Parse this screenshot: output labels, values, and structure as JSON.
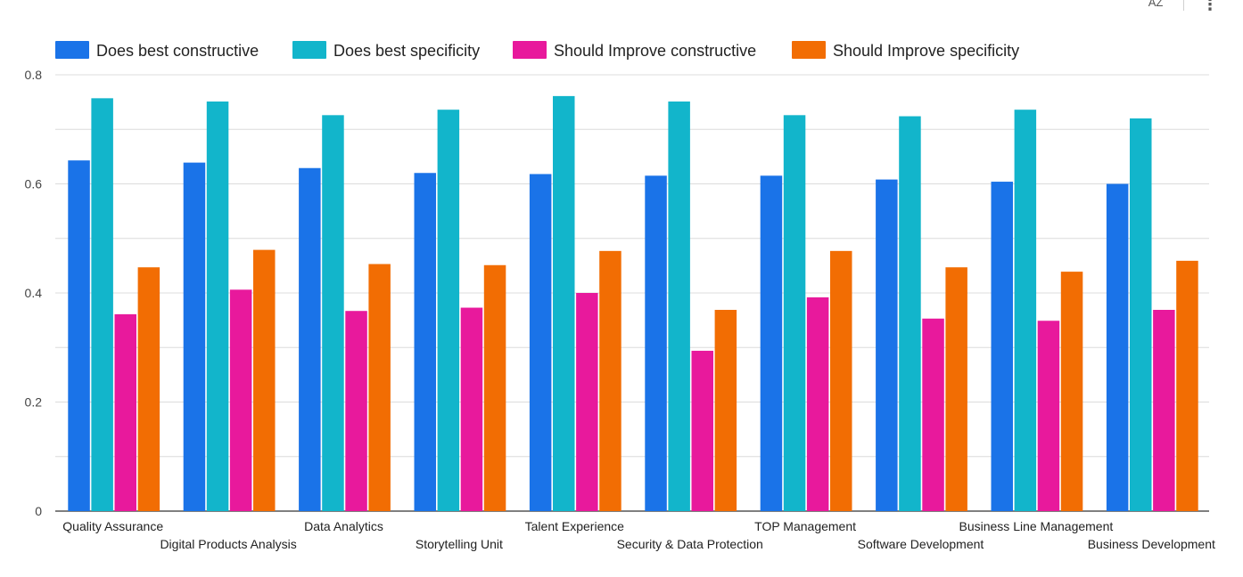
{
  "toolbar": {
    "sort_icon_text": "AZ",
    "more_icon": "more-vert-icon"
  },
  "chart_data": {
    "type": "bar",
    "title": "",
    "xlabel": "",
    "ylabel": "",
    "ylim": [
      0,
      0.8
    ],
    "yticks": [
      0,
      0.2,
      0.4,
      0.6,
      0.8
    ],
    "ytick_labels": [
      "0",
      "0.2",
      "0.4",
      "0.6",
      "0.8"
    ],
    "grid": true,
    "legend_position": "top-left",
    "categories": [
      "Quality Assurance",
      "Digital Products Analysis",
      "Data Analytics",
      "Storytelling Unit",
      "Talent Experience",
      "Security & Data Protection",
      "TOP Management",
      "Software Development",
      "Business Line Management",
      "Business Development"
    ],
    "series": [
      {
        "name": "Does best constructive",
        "color": "#1a73e8",
        "values": [
          0.643,
          0.639,
          0.629,
          0.62,
          0.618,
          0.615,
          0.615,
          0.608,
          0.604,
          0.6
        ]
      },
      {
        "name": "Does best specificity",
        "color": "#12b5cb",
        "values": [
          0.757,
          0.751,
          0.726,
          0.736,
          0.761,
          0.751,
          0.726,
          0.724,
          0.736,
          0.72
        ]
      },
      {
        "name": "Should Improve constructive",
        "color": "#e8199c",
        "values": [
          0.361,
          0.406,
          0.367,
          0.373,
          0.4,
          0.294,
          0.392,
          0.353,
          0.349,
          0.369
        ]
      },
      {
        "name": "Should Improve specificity",
        "color": "#f26d03",
        "values": [
          0.447,
          0.479,
          0.453,
          0.451,
          0.477,
          0.369,
          0.477,
          0.447,
          0.439,
          0.459
        ]
      }
    ]
  }
}
